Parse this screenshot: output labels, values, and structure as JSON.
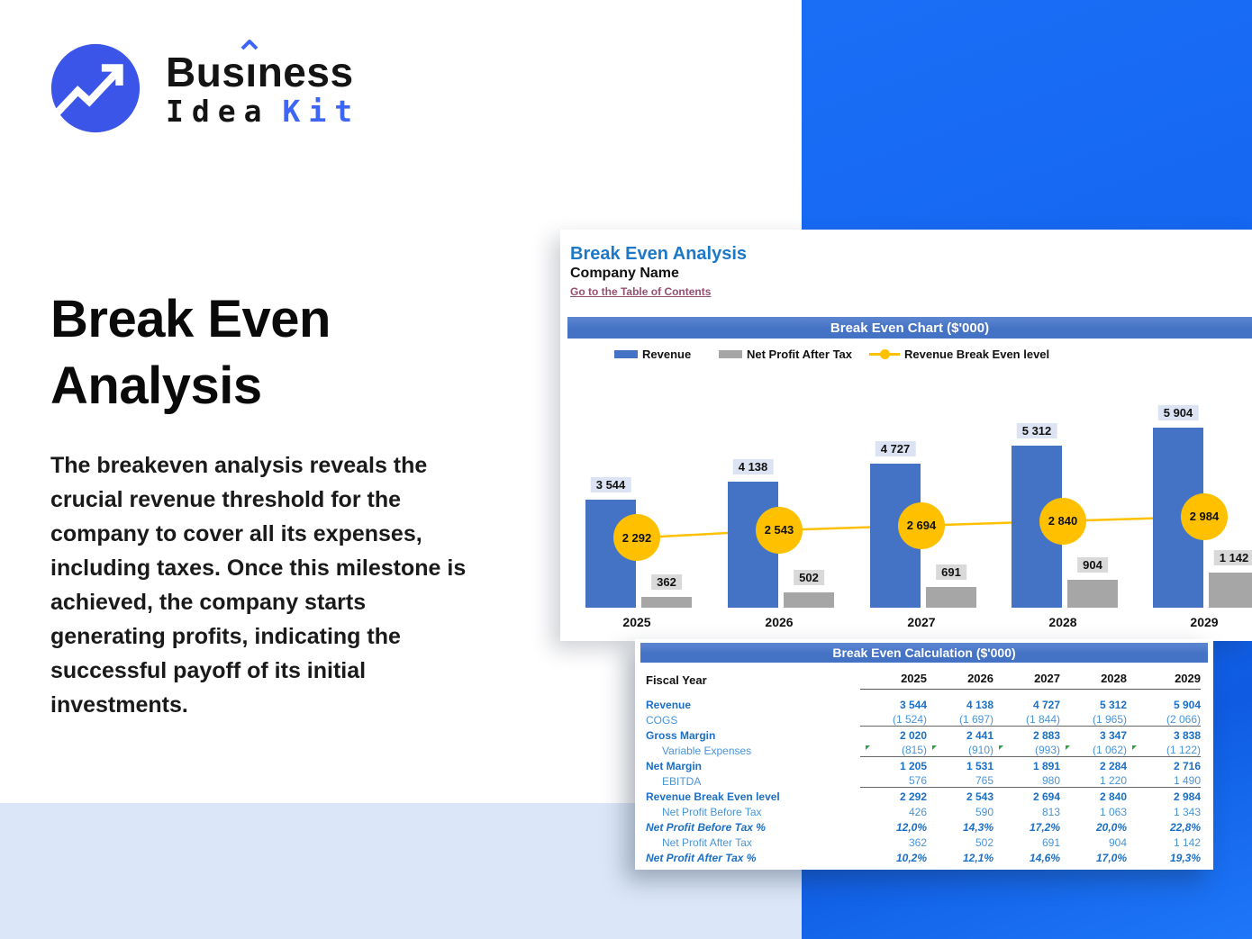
{
  "colors": {
    "brand_blue": "#3d66f6",
    "logo_circle_blue": "#3b55e8",
    "background_blue": "#1465f0",
    "light_blue_band": "#dbe7f8",
    "banner_blue": "#4472c4",
    "bar_blue": "#4472c4",
    "bar_gray": "#a6a6a6",
    "line_yellow": "#ffc000",
    "table_bold_blue": "#1b6fc5",
    "table_light_blue": "#4a94d6",
    "link_maroon": "#954f72"
  },
  "logo": {
    "pre": "Bus",
    "i": "ı",
    "post": "ness",
    "line2_black": "Idea",
    "line2_blue": "Kit"
  },
  "hero": {
    "title": "Break Even Analysis",
    "paragraph": "The breakeven analysis reveals the crucial revenue threshold for the company to cover all its expenses, including taxes. Once this milestone is achieved, the company starts generating profits, indicating the successful payoff of its initial investments."
  },
  "sheet": {
    "title": "Break Even Analysis",
    "company": "Company Name",
    "toc_link": "Go to the Table of Contents",
    "chart": {
      "banner": "Break Even Chart ($'000)",
      "legend": [
        "Revenue",
        "Net Profit After Tax",
        "Revenue Break Even level"
      ],
      "years": [
        "2025",
        "2026",
        "2027",
        "2028",
        "2029"
      ],
      "revenue_labels": [
        "3 544",
        "4 138",
        "4 727",
        "5 312",
        "5 904"
      ],
      "net_profit_labels": [
        "362",
        "502",
        "691",
        "904",
        "1 142"
      ],
      "break_even_labels": [
        "2 292",
        "2 543",
        "2 694",
        "2 840",
        "2 984"
      ]
    },
    "table": {
      "banner": "Break Even Calculation ($'000)",
      "fiscal_label": "Fiscal Year",
      "years": [
        "2025",
        "2026",
        "2027",
        "2028",
        "2029"
      ],
      "rows": [
        {
          "label": "Revenue",
          "values": [
            "3 544",
            "4 138",
            "4 727",
            "5 312",
            "5 904"
          ]
        },
        {
          "label": "COGS",
          "values": [
            "(1 524)",
            "(1 697)",
            "(1 844)",
            "(1 965)",
            "(2 066)"
          ]
        },
        {
          "label": "Gross Margin",
          "values": [
            "2 020",
            "2 441",
            "2 883",
            "3 347",
            "3 838"
          ]
        },
        {
          "label": "Variable Expenses",
          "values": [
            "(815)",
            "(910)",
            "(993)",
            "(1 062)",
            "(1 122)"
          ]
        },
        {
          "label": "Net Margin",
          "values": [
            "1 205",
            "1 531",
            "1 891",
            "2 284",
            "2 716"
          ]
        },
        {
          "label": "EBITDA",
          "values": [
            "576",
            "765",
            "980",
            "1 220",
            "1 490"
          ]
        },
        {
          "label": "Revenue Break Even level",
          "values": [
            "2 292",
            "2 543",
            "2 694",
            "2 840",
            "2 984"
          ]
        },
        {
          "label": "Net Profit Before Tax",
          "values": [
            "426",
            "590",
            "813",
            "1 063",
            "1 343"
          ]
        },
        {
          "label": "Net Profit Before Tax %",
          "values": [
            "12,0%",
            "14,3%",
            "17,2%",
            "20,0%",
            "22,8%"
          ]
        },
        {
          "label": "Net Profit After Tax",
          "values": [
            "362",
            "502",
            "691",
            "904",
            "1 142"
          ]
        },
        {
          "label": "Net Profit After Tax %",
          "values": [
            "10,2%",
            "12,1%",
            "14,6%",
            "17,0%",
            "19,3%"
          ]
        }
      ]
    }
  },
  "chart_data": [
    {
      "type": "bar",
      "title": "Break Even Chart ($'000)",
      "categories": [
        "2025",
        "2026",
        "2027",
        "2028",
        "2029"
      ],
      "series": [
        {
          "name": "Revenue",
          "type": "bar",
          "color": "#4472C4",
          "values": [
            3544,
            4138,
            4727,
            5312,
            5904
          ]
        },
        {
          "name": "Net Profit After Tax",
          "type": "bar",
          "color": "#A6A6A6",
          "values": [
            362,
            502,
            691,
            904,
            1142
          ]
        },
        {
          "name": "Revenue Break Even level",
          "type": "line",
          "color": "#FFC000",
          "values": [
            2292,
            2543,
            2694,
            2840,
            2984
          ]
        }
      ],
      "legend_position": "top",
      "grid": false,
      "data_labels": true,
      "ylim": [
        0,
        6200
      ]
    },
    {
      "type": "table",
      "title": "Break Even Calculation ($'000)",
      "columns": [
        "Fiscal Year",
        "2025",
        "2026",
        "2027",
        "2028",
        "2029"
      ],
      "rows": [
        [
          "Revenue",
          3544,
          4138,
          4727,
          5312,
          5904
        ],
        [
          "COGS",
          -1524,
          -1697,
          -1844,
          -1965,
          -2066
        ],
        [
          "Gross Margin",
          2020,
          2441,
          2883,
          3347,
          3838
        ],
        [
          "Variable Expenses",
          -815,
          -910,
          -993,
          -1062,
          -1122
        ],
        [
          "Net Margin",
          1205,
          1531,
          1891,
          2284,
          2716
        ],
        [
          "EBITDA",
          576,
          765,
          980,
          1220,
          1490
        ],
        [
          "Revenue Break Even level",
          2292,
          2543,
          2694,
          2840,
          2984
        ],
        [
          "Net Profit Before Tax",
          426,
          590,
          813,
          1063,
          1343
        ],
        [
          "Net Profit Before Tax %",
          "12,0%",
          "14,3%",
          "17,2%",
          "20,0%",
          "22,8%"
        ],
        [
          "Net Profit After Tax",
          362,
          502,
          691,
          904,
          1142
        ],
        [
          "Net Profit After Tax %",
          "10,2%",
          "12,1%",
          "14,6%",
          "17,0%",
          "19,3%"
        ]
      ]
    }
  ]
}
